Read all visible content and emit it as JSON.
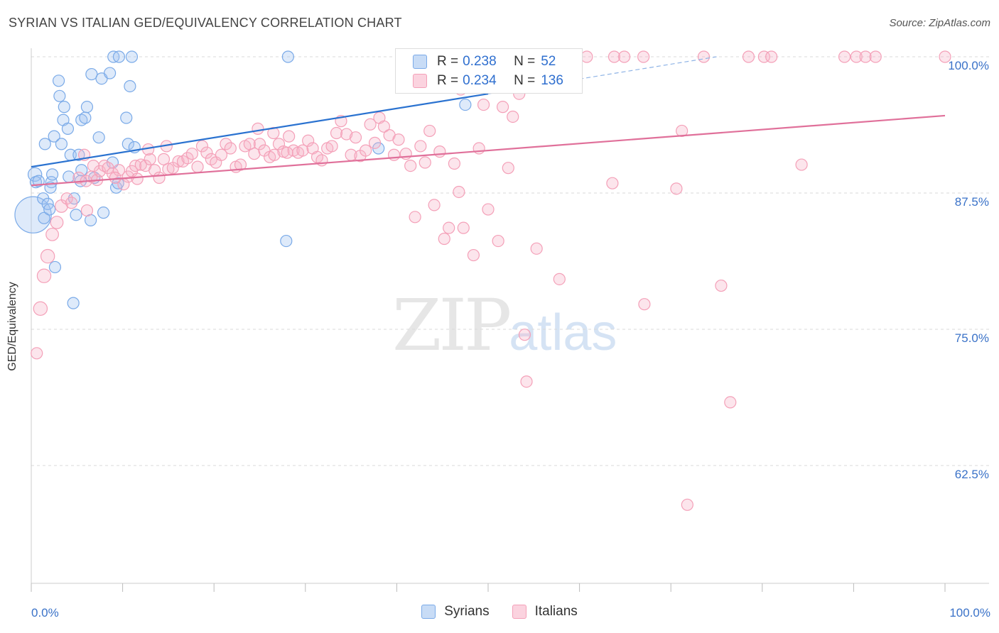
{
  "title": "SYRIAN VS ITALIAN GED/EQUIVALENCY CORRELATION CHART",
  "source": "Source: ZipAtlas.com",
  "watermark": {
    "zip": "ZIP",
    "atlas": "atlas"
  },
  "legend_top": {
    "rows": [
      {
        "r_label": "R = ",
        "r_value": "0.238",
        "n_label": "N = ",
        "n_value": "52",
        "color": "#7aaae8"
      },
      {
        "r_label": "R = ",
        "r_value": "0.234",
        "n_label": "N = ",
        "n_value": "136",
        "color": "#f4a0b8"
      }
    ]
  },
  "legend_bottom": [
    {
      "label": "Syrians",
      "color": "#7aaae8"
    },
    {
      "label": "Italians",
      "color": "#f4a0b8"
    }
  ],
  "chart_data": {
    "type": "scatter",
    "title": "SYRIAN VS ITALIAN GED/EQUIVALENCY CORRELATION CHART",
    "xlabel": "",
    "ylabel": "GED/Equivalency",
    "xlim": [
      0,
      100
    ],
    "ylim": [
      52.5,
      101
    ],
    "x_tick_labels": [
      "0.0%",
      "100.0%"
    ],
    "y_ticks": [
      62.5,
      75.0,
      87.5,
      100.0
    ],
    "y_tick_labels": [
      "62.5%",
      "75.0%",
      "87.5%",
      "100.0%"
    ],
    "grid": true,
    "series": [
      {
        "name": "Syrians",
        "color": "#7aaae8",
        "line_color": "#2a72d0",
        "trend": {
          "x0": 0,
          "y0": 89.9,
          "x1": 50,
          "y1": 96.6,
          "dash_to_x": 75,
          "dash_to_y": 100.0
        },
        "points": [
          [
            0.2,
            85.5,
            3.2
          ],
          [
            0.4,
            89.2,
            1.2
          ],
          [
            0.5,
            88.5,
            1.0
          ],
          [
            0.8,
            88.6,
            1.0
          ],
          [
            1.3,
            87.0,
            1.0
          ],
          [
            1.5,
            92.0,
            1.0
          ],
          [
            1.4,
            85.2,
            1.0
          ],
          [
            1.8,
            86.5,
            1.0
          ],
          [
            2.0,
            86.0,
            1.0
          ],
          [
            2.2,
            88.5,
            1.0
          ],
          [
            2.3,
            89.2,
            1.0
          ],
          [
            2.5,
            92.7,
            1.0
          ],
          [
            2.6,
            80.7,
            1.0
          ],
          [
            3.0,
            97.8,
            1.0
          ],
          [
            3.1,
            96.4,
            1.0
          ],
          [
            3.3,
            92.0,
            1.0
          ],
          [
            3.5,
            94.2,
            1.0
          ],
          [
            3.6,
            95.4,
            1.0
          ],
          [
            4.0,
            93.4,
            1.0
          ],
          [
            4.1,
            89.0,
            1.0
          ],
          [
            4.3,
            91.0,
            1.0
          ],
          [
            4.6,
            77.4,
            1.0
          ],
          [
            4.7,
            87.0,
            1.0
          ],
          [
            4.9,
            85.5,
            1.0
          ],
          [
            5.2,
            91.0,
            1.0
          ],
          [
            5.4,
            88.6,
            1.0
          ],
          [
            5.5,
            94.2,
            1.0
          ],
          [
            5.9,
            94.4,
            1.0
          ],
          [
            6.1,
            95.4,
            1.0
          ],
          [
            6.5,
            85.0,
            1.0
          ],
          [
            6.6,
            98.4,
            1.0
          ],
          [
            6.9,
            88.9,
            1.0
          ],
          [
            7.4,
            92.6,
            1.0
          ],
          [
            7.7,
            98.0,
            1.0
          ],
          [
            7.9,
            85.7,
            1.0
          ],
          [
            8.6,
            98.5,
            1.0
          ],
          [
            8.9,
            90.3,
            1.0
          ],
          [
            9.0,
            100.0,
            1.0
          ],
          [
            9.3,
            88.0,
            1.0
          ],
          [
            9.5,
            88.4,
            1.0
          ],
          [
            9.6,
            100.0,
            1.0
          ],
          [
            10.4,
            94.4,
            1.0
          ],
          [
            10.6,
            92.0,
            1.0
          ],
          [
            10.8,
            97.3,
            1.0
          ],
          [
            11.0,
            100.0,
            1.0
          ],
          [
            11.3,
            91.7,
            1.0
          ],
          [
            28.1,
            100.0,
            1.0
          ],
          [
            27.9,
            83.1,
            1.0
          ],
          [
            38.0,
            91.6,
            1.0
          ],
          [
            47.5,
            95.6,
            1.0
          ],
          [
            5.5,
            89.6,
            1.0
          ],
          [
            2.1,
            88.0,
            1.0
          ]
        ]
      },
      {
        "name": "Italians",
        "color": "#f4a0b8",
        "line_color": "#e0709a",
        "trend": {
          "x0": 0,
          "y0": 88.2,
          "x1": 100,
          "y1": 94.6
        },
        "points": [
          [
            0.6,
            72.8,
            1.0
          ],
          [
            1.0,
            76.9,
            1.2
          ],
          [
            1.4,
            79.9,
            1.2
          ],
          [
            1.8,
            81.7,
            1.2
          ],
          [
            2.3,
            83.7,
            1.1
          ],
          [
            2.8,
            84.8,
            1.1
          ],
          [
            3.3,
            86.3,
            1.1
          ],
          [
            3.9,
            87.0,
            1.0
          ],
          [
            4.4,
            86.6,
            1.0
          ],
          [
            5.2,
            88.9,
            1.0
          ],
          [
            6.0,
            88.6,
            1.0
          ],
          [
            6.1,
            85.9,
            1.0
          ],
          [
            6.6,
            89.0,
            1.0
          ],
          [
            7.2,
            88.7,
            1.0
          ],
          [
            7.5,
            89.5,
            1.0
          ],
          [
            8.0,
            90.0,
            1.0
          ],
          [
            8.4,
            89.8,
            1.0
          ],
          [
            8.9,
            89.3,
            1.0
          ],
          [
            9.6,
            89.6,
            1.0
          ],
          [
            10.1,
            88.3,
            1.0
          ],
          [
            10.6,
            89.0,
            1.0
          ],
          [
            11.0,
            89.5,
            1.0
          ],
          [
            11.4,
            90.0,
            1.0
          ],
          [
            12.0,
            90.1,
            1.0
          ],
          [
            12.5,
            90.0,
            1.0
          ],
          [
            13.0,
            90.6,
            1.0
          ],
          [
            13.5,
            89.6,
            1.0
          ],
          [
            14.0,
            88.9,
            1.0
          ],
          [
            14.5,
            90.6,
            1.0
          ],
          [
            15.0,
            89.7,
            1.0
          ],
          [
            15.5,
            89.8,
            1.0
          ],
          [
            16.1,
            90.4,
            1.0
          ],
          [
            16.6,
            90.4,
            1.0
          ],
          [
            17.1,
            90.7,
            1.0
          ],
          [
            17.6,
            91.1,
            1.0
          ],
          [
            18.2,
            89.9,
            1.0
          ],
          [
            18.7,
            91.8,
            1.0
          ],
          [
            19.2,
            91.2,
            1.0
          ],
          [
            19.7,
            90.6,
            1.0
          ],
          [
            20.2,
            90.3,
            1.0
          ],
          [
            20.8,
            91.0,
            1.0
          ],
          [
            21.3,
            92.0,
            1.0
          ],
          [
            21.8,
            91.6,
            1.0
          ],
          [
            22.4,
            89.9,
            1.0
          ],
          [
            22.9,
            90.1,
            1.0
          ],
          [
            23.4,
            91.8,
            1.0
          ],
          [
            23.9,
            92.0,
            1.0
          ],
          [
            24.4,
            91.1,
            1.0
          ],
          [
            25.0,
            92.0,
            1.0
          ],
          [
            25.5,
            91.4,
            1.0
          ],
          [
            26.1,
            90.8,
            1.0
          ],
          [
            26.6,
            91.0,
            1.0
          ],
          [
            27.1,
            92.0,
            1.0
          ],
          [
            27.6,
            91.3,
            1.0
          ],
          [
            28.2,
            92.7,
            1.0
          ],
          [
            28.7,
            91.4,
            1.0
          ],
          [
            29.2,
            91.2,
            1.0
          ],
          [
            29.7,
            91.4,
            1.0
          ],
          [
            30.3,
            92.3,
            1.0
          ],
          [
            30.8,
            91.6,
            1.0
          ],
          [
            31.3,
            90.8,
            1.0
          ],
          [
            31.8,
            90.5,
            1.0
          ],
          [
            32.4,
            91.6,
            1.0
          ],
          [
            32.9,
            91.8,
            1.0
          ],
          [
            33.4,
            93.0,
            1.0
          ],
          [
            33.9,
            94.1,
            1.0
          ],
          [
            34.5,
            92.9,
            1.0
          ],
          [
            35.0,
            91.0,
            1.0
          ],
          [
            35.5,
            92.6,
            1.0
          ],
          [
            36.0,
            90.9,
            1.0
          ],
          [
            36.6,
            91.4,
            1.0
          ],
          [
            37.1,
            93.8,
            1.0
          ],
          [
            37.6,
            92.1,
            1.0
          ],
          [
            38.1,
            94.4,
            1.0
          ],
          [
            38.6,
            93.6,
            1.0
          ],
          [
            39.2,
            92.8,
            1.0
          ],
          [
            39.7,
            91.0,
            1.0
          ],
          [
            40.2,
            92.4,
            1.0
          ],
          [
            41.0,
            91.1,
            1.0
          ],
          [
            41.5,
            90.0,
            1.0
          ],
          [
            42.0,
            85.3,
            1.0
          ],
          [
            42.6,
            91.8,
            1.0
          ],
          [
            43.1,
            90.3,
            1.0
          ],
          [
            43.6,
            93.2,
            1.0
          ],
          [
            44.1,
            86.4,
            1.0
          ],
          [
            44.7,
            91.3,
            1.0
          ],
          [
            45.2,
            83.3,
            1.0
          ],
          [
            45.7,
            84.3,
            1.0
          ],
          [
            46.3,
            90.2,
            1.0
          ],
          [
            46.8,
            87.6,
            1.0
          ],
          [
            47.3,
            84.3,
            1.0
          ],
          [
            48.4,
            81.8,
            1.0
          ],
          [
            49.0,
            91.6,
            1.0
          ],
          [
            49.5,
            95.6,
            1.0
          ],
          [
            50.0,
            86.0,
            1.0
          ],
          [
            51.1,
            83.1,
            1.0
          ],
          [
            51.6,
            95.4,
            1.0
          ],
          [
            52.2,
            89.8,
            1.0
          ],
          [
            52.7,
            94.5,
            1.0
          ],
          [
            53.4,
            96.6,
            1.0
          ],
          [
            54.2,
            70.2,
            1.0
          ],
          [
            54.0,
            74.5,
            1.0
          ],
          [
            55.3,
            82.4,
            1.0
          ],
          [
            57.8,
            79.6,
            1.0
          ],
          [
            59.1,
            100.0,
            1.0
          ],
          [
            60.8,
            100.0,
            1.0
          ],
          [
            63.6,
            88.4,
            1.0
          ],
          [
            63.8,
            100.0,
            1.0
          ],
          [
            64.9,
            100.0,
            1.0
          ],
          [
            67.0,
            100.0,
            1.0
          ],
          [
            67.1,
            77.3,
            1.0
          ],
          [
            70.6,
            87.9,
            1.0
          ],
          [
            71.2,
            93.2,
            1.0
          ],
          [
            71.8,
            58.9,
            1.0
          ],
          [
            73.6,
            100.0,
            1.0
          ],
          [
            75.5,
            79.0,
            1.0
          ],
          [
            76.5,
            68.3,
            1.0
          ],
          [
            78.5,
            100.0,
            1.0
          ],
          [
            80.2,
            100.0,
            1.0
          ],
          [
            81.0,
            100.0,
            1.0
          ],
          [
            84.3,
            90.1,
            1.0
          ],
          [
            89.0,
            100.0,
            1.0
          ],
          [
            90.3,
            100.0,
            1.0
          ],
          [
            91.3,
            100.0,
            1.0
          ],
          [
            92.4,
            100.0,
            1.0
          ],
          [
            100.0,
            100.0,
            1.0
          ],
          [
            5.8,
            91.0,
            1.0
          ],
          [
            6.8,
            90.0,
            1.0
          ],
          [
            9.2,
            88.9,
            1.0
          ],
          [
            47.0,
            97.0,
            1.0
          ],
          [
            56.0,
            100.0,
            1.0
          ],
          [
            57.5,
            100.0,
            1.0
          ],
          [
            12.8,
            91.5,
            1.0
          ],
          [
            11.6,
            88.8,
            1.0
          ],
          [
            14.8,
            91.8,
            1.0
          ],
          [
            24.8,
            93.4,
            1.0
          ],
          [
            26.5,
            93.0,
            1.0
          ],
          [
            28.0,
            91.2,
            1.0
          ]
        ]
      }
    ]
  }
}
